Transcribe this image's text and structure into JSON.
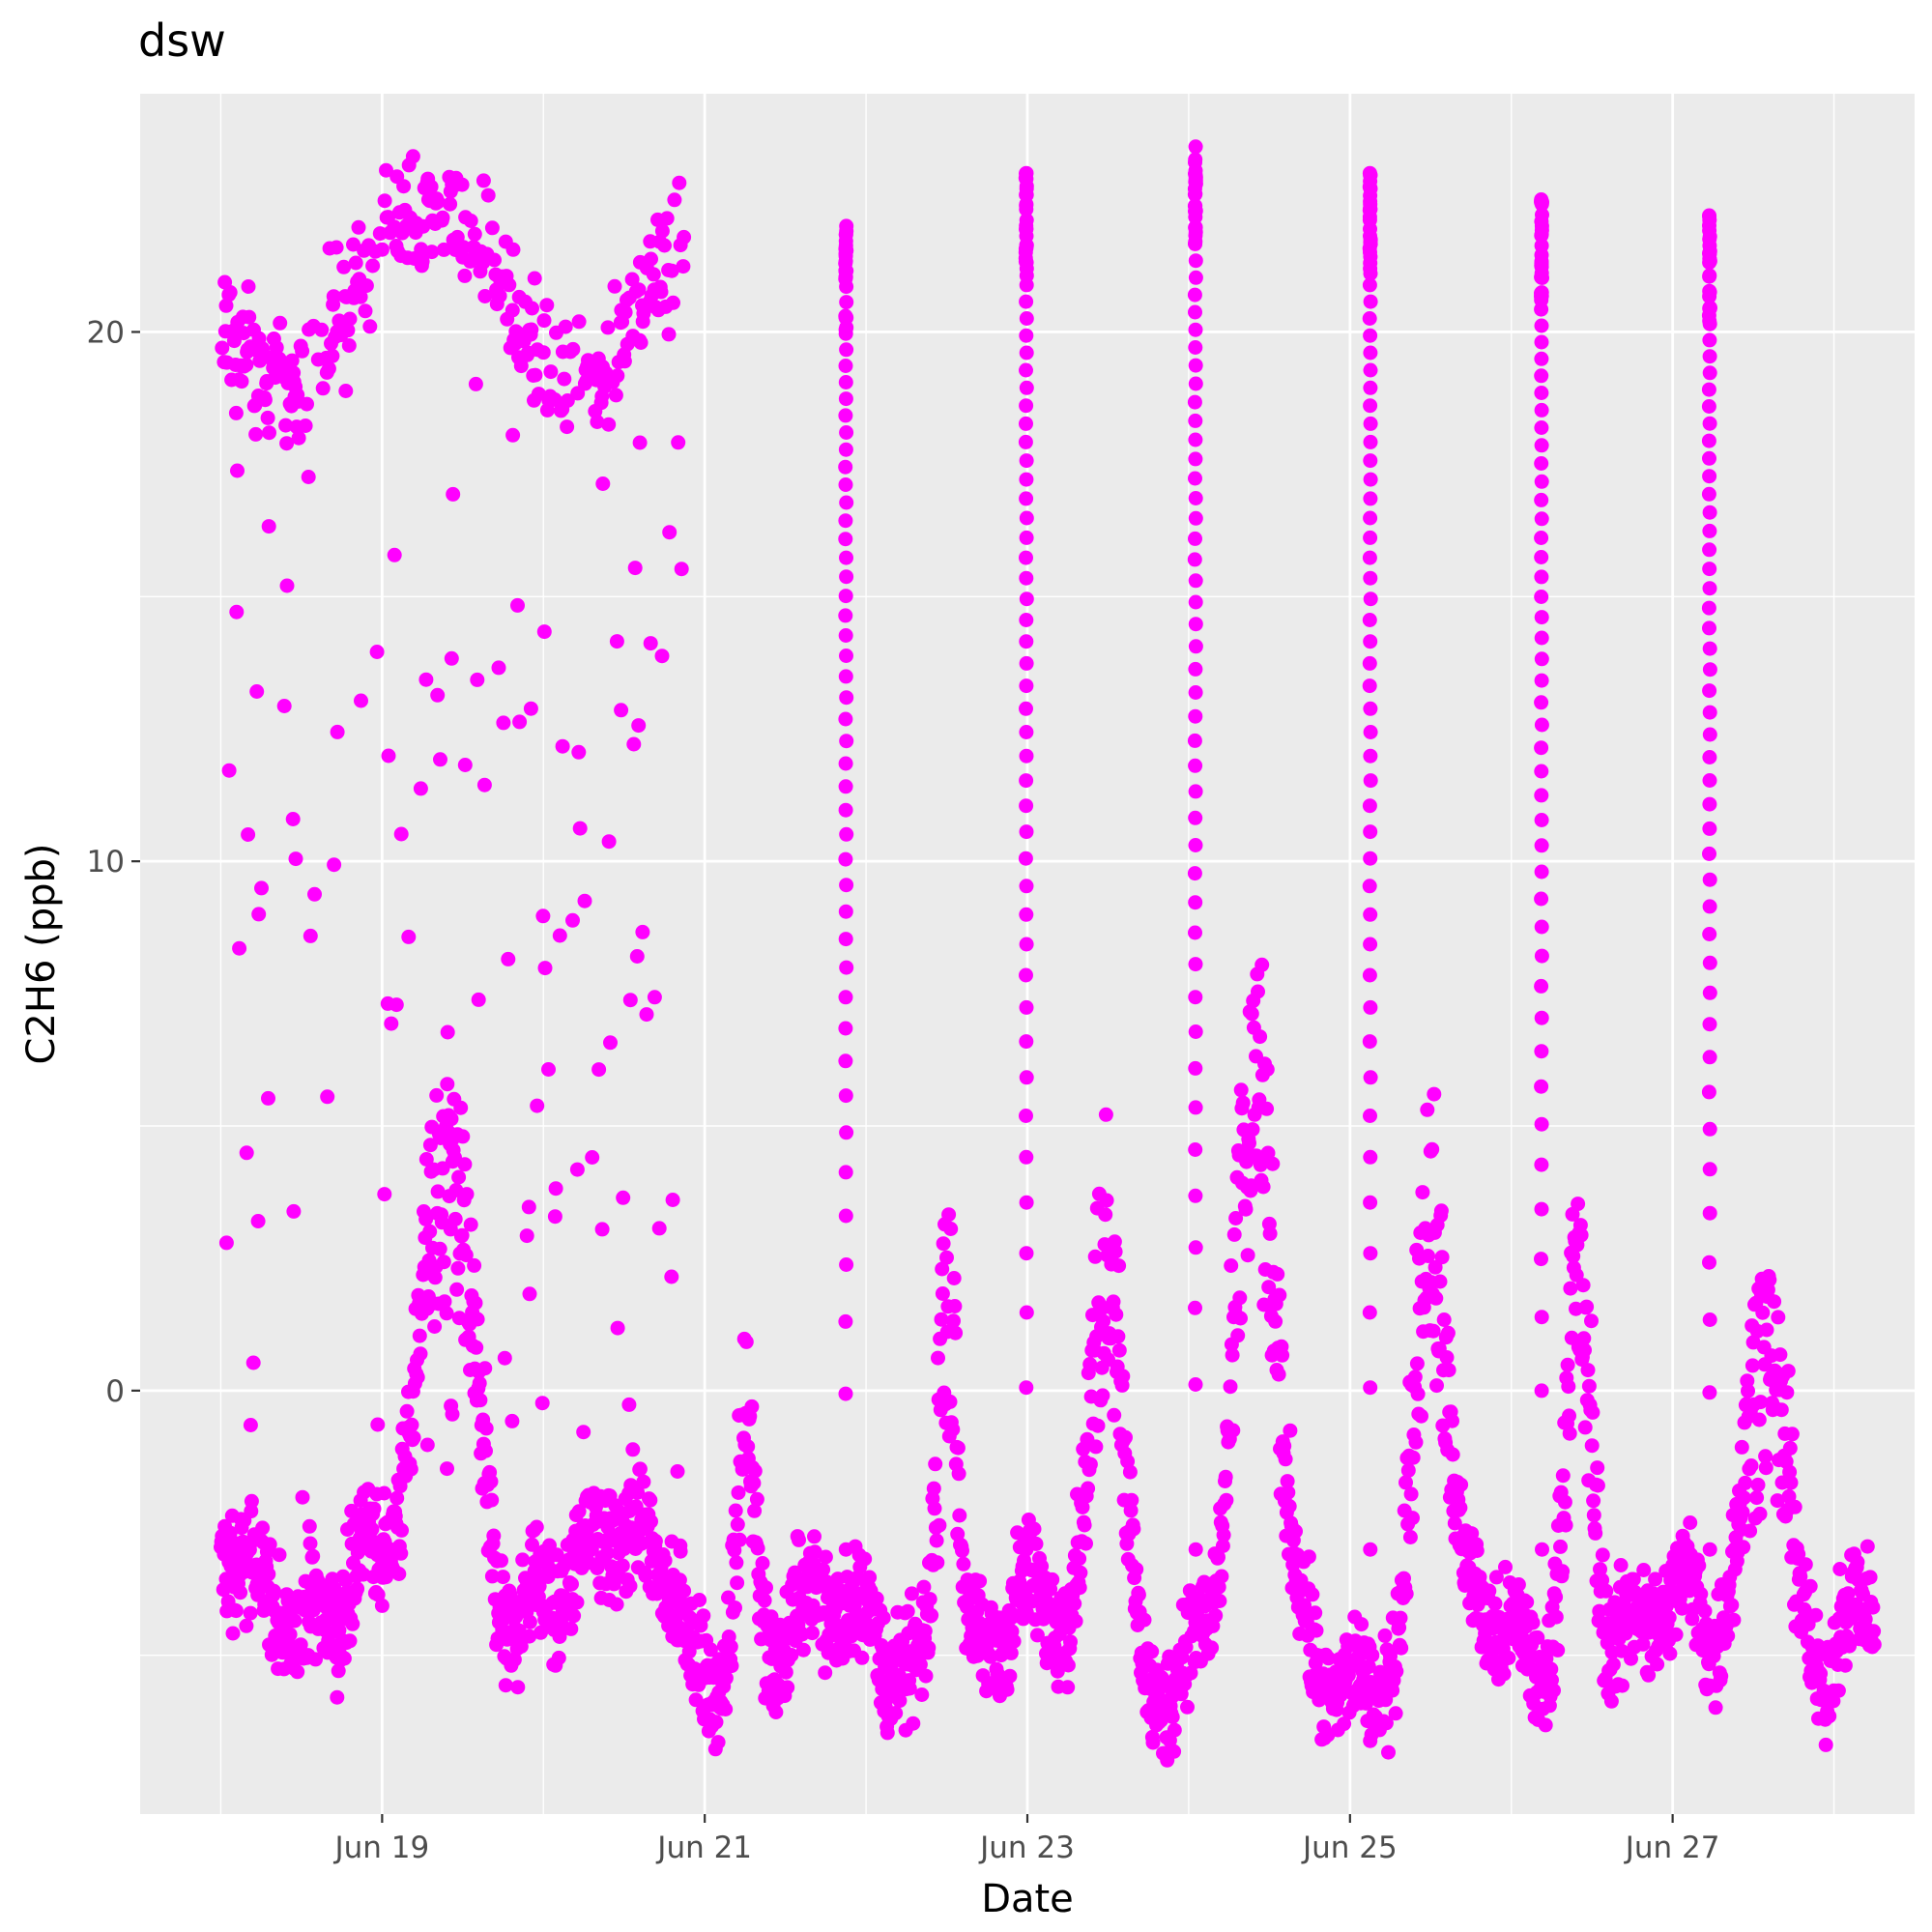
{
  "chart_data": {
    "type": "scatter",
    "title": "dsw",
    "xlabel": "Date",
    "ylabel": "C2H6 (ppb)",
    "x_ticks": [
      "Jun 19",
      "Jun 21",
      "Jun 23",
      "Jun 25",
      "Jun 27"
    ],
    "y_ticks": [
      "0",
      "10",
      "20"
    ],
    "x_range": [
      "2024-06-17T12:00",
      "2024-06-28T12:00"
    ],
    "ylim": [
      -8,
      24.5
    ],
    "grid": true,
    "point_color": "#FF00FF",
    "panel_color": "#EBEBEB",
    "segments": [
      {
        "start": "2024-06-18T00:00",
        "end": "2024-06-20T21:00",
        "baseline": -3.5,
        "high_mode": true
      },
      {
        "start": "2024-06-20T21:00",
        "end": "2024-06-28T06:00",
        "baseline": -4.8,
        "high_mode": false
      }
    ],
    "peaks": [
      {
        "t": "2024-06-19T10:00",
        "value": 5.0,
        "width_h": 5
      },
      {
        "t": "2024-06-21T06:00",
        "value": 1.6,
        "width_h": 2
      },
      {
        "t": "2024-06-22T12:00",
        "value": 5.8,
        "width_h": 2
      },
      {
        "t": "2024-06-23T12:00",
        "value": 6.5,
        "width_h": 3
      },
      {
        "t": "2024-06-24T10:00",
        "value": 7.8,
        "width_h": 4
      },
      {
        "t": "2024-06-25T12:00",
        "value": 5.8,
        "width_h": 3
      },
      {
        "t": "2024-06-26T10:00",
        "value": 4.6,
        "width_h": 3
      },
      {
        "t": "2024-06-27T14:00",
        "value": 4.2,
        "width_h": 4
      }
    ],
    "calibration_spikes": [
      {
        "t": "2024-06-21T21:00",
        "top": 22.0
      },
      {
        "t": "2024-06-22T23:50",
        "top": 23.0
      },
      {
        "t": "2024-06-24T01:00",
        "top": 23.5
      },
      {
        "t": "2024-06-25T03:00",
        "top": 23.0
      },
      {
        "t": "2024-06-26T04:30",
        "top": 22.5
      },
      {
        "t": "2024-06-27T05:30",
        "top": 22.2
      }
    ]
  }
}
